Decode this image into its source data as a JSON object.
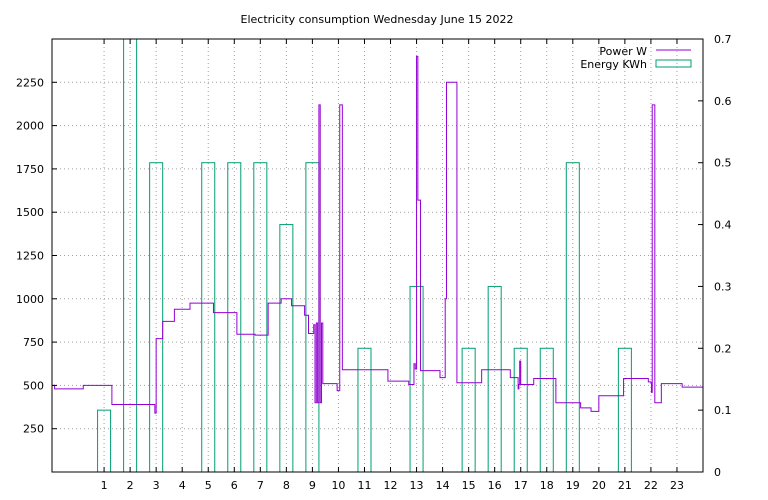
{
  "chart_data": {
    "type": "bar+line",
    "title": "Electricity consumption Wednesday June 15 2022",
    "x_ticks": [
      1,
      2,
      3,
      4,
      5,
      6,
      7,
      8,
      9,
      10,
      11,
      12,
      13,
      14,
      15,
      16,
      17,
      18,
      19,
      20,
      21,
      22,
      23
    ],
    "xlim": [
      -1,
      24
    ],
    "y_left": {
      "lim": [
        0,
        2500
      ],
      "ticks": [
        250,
        500,
        750,
        1000,
        1250,
        1500,
        1750,
        2000,
        2250
      ]
    },
    "y_right": {
      "lim": [
        0,
        0.7
      ],
      "ticks": [
        "0",
        "0.1",
        "0.2",
        "0.3",
        "0.4",
        "0.5",
        "0.6",
        "0.7"
      ],
      "tick_values": [
        0,
        0.1,
        0.2,
        0.3,
        0.4,
        0.5,
        0.6,
        0.7
      ]
    },
    "grid": true,
    "legend_position": "top-right",
    "colors": {
      "power": "#9400d3",
      "energy": "#009e73"
    },
    "series": [
      {
        "name": "Power W",
        "axis": "left",
        "style": "steps",
        "x": [
          -1.0,
          -0.9,
          0.0,
          0.2,
          1.2,
          1.3,
          2.0,
          2.9,
          2.95,
          3.0,
          3.1,
          3.25,
          3.3,
          3.7,
          4.0,
          4.3,
          4.8,
          5.2,
          5.6,
          6.1,
          6.4,
          6.8,
          7.3,
          7.8,
          8.2,
          8.7,
          8.85,
          9.0,
          9.05,
          9.1,
          9.15,
          9.2,
          9.25,
          9.3,
          9.35,
          9.4,
          9.85,
          9.95,
          10.05,
          10.15,
          10.9,
          11.9,
          12.7,
          12.9,
          12.95,
          13.0,
          13.05,
          13.15,
          13.3,
          13.9,
          14.05,
          14.1,
          14.15,
          14.55,
          15.5,
          16.6,
          16.9,
          16.93,
          16.96,
          17.0,
          17.5,
          18.15,
          18.35,
          19.3,
          19.4,
          19.7,
          20.0,
          20.95,
          21.9,
          22.0,
          22.02,
          22.05,
          22.15,
          22.4,
          23.2,
          23.95
        ],
        "y": [
          500,
          480,
          480,
          500,
          500,
          390,
          390,
          390,
          340,
          770,
          770,
          870,
          870,
          940,
          940,
          975,
          975,
          920,
          920,
          795,
          795,
          790,
          975,
          1000,
          960,
          905,
          800,
          800,
          850,
          400,
          860,
          400,
          2120,
          400,
          860,
          510,
          510,
          470,
          2120,
          590,
          590,
          525,
          505,
          625,
          595,
          2400,
          1570,
          585,
          585,
          545,
          545,
          1000,
          2250,
          515,
          590,
          545,
          480,
          505,
          640,
          505,
          540,
          540,
          400,
          370,
          370,
          350,
          440,
          540,
          520,
          515,
          460,
          2120,
          400,
          510,
          490,
          490
        ]
      },
      {
        "name": "Energy KWh",
        "axis": "right",
        "style": "boxes",
        "x": [
          1,
          2,
          3,
          4,
          5,
          6,
          7,
          8,
          9,
          10,
          11,
          12,
          13,
          14,
          15,
          16,
          17,
          18,
          19,
          20,
          21,
          22,
          23
        ],
        "values": [
          0.1,
          0.7,
          0.5,
          0,
          0.5,
          0.5,
          0.5,
          0.4,
          0.5,
          0,
          0.2,
          0,
          0.3,
          0,
          0.2,
          0.3,
          0.2,
          0.2,
          0.5,
          0,
          0.2,
          0,
          0
        ]
      }
    ]
  }
}
